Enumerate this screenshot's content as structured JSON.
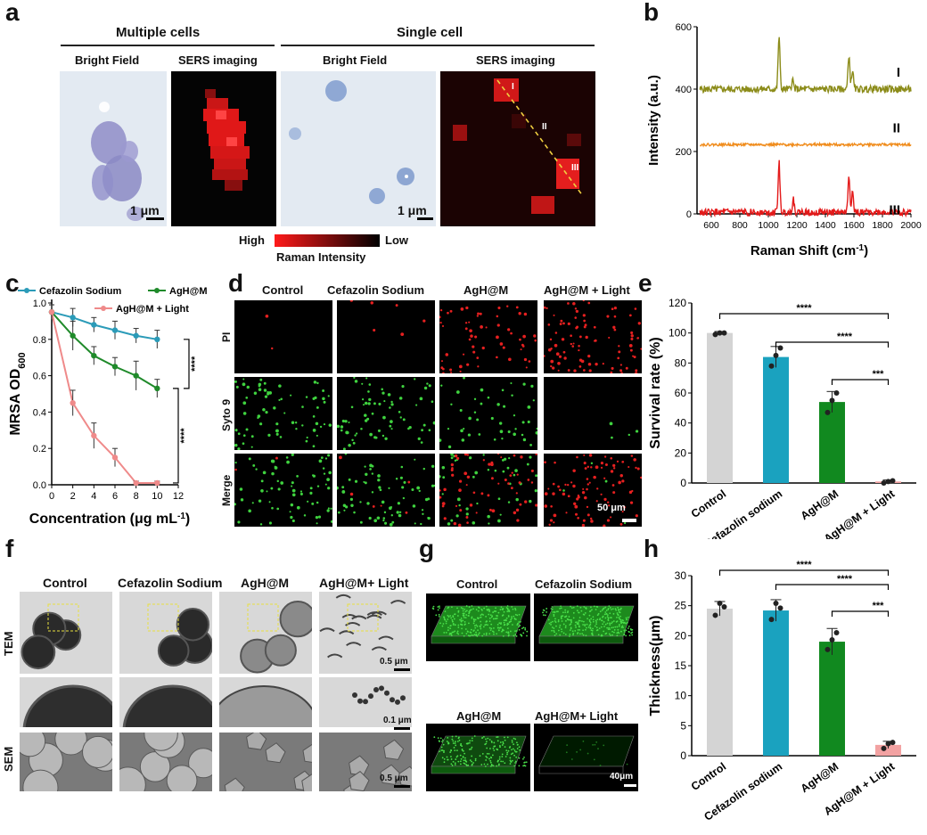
{
  "panels": {
    "a": "a",
    "b": "b",
    "c": "c",
    "d": "d",
    "e": "e",
    "f": "f",
    "g": "g",
    "h": "h"
  },
  "panel_a": {
    "group_multi": "Multiple cells",
    "group_single": "Single cell",
    "bright_field": "Bright Field",
    "sers_imaging": "SERS imaging",
    "scale": "1 μm",
    "colorbar_high": "High",
    "colorbar_low": "Low",
    "colorbar_label": "Raman Intensity",
    "spot_labels": [
      "I",
      "II",
      "III"
    ]
  },
  "panel_d": {
    "columns": [
      "Control",
      "Cefazolin Sodium",
      "AgH@M",
      "AgH@M + Light"
    ],
    "rows": [
      "PI",
      "Syto 9",
      "Merge"
    ],
    "scale": "50 μm"
  },
  "panel_f": {
    "columns": [
      "Control",
      "Cefazolin Sodium",
      "AgH@M",
      "AgH@M+ Light"
    ],
    "rows": [
      "TEM",
      "SEM"
    ],
    "scale_1": "0.5 μm",
    "scale_2": "0.1 μm",
    "scale_3": "0.5 μm"
  },
  "panel_g": {
    "labels": [
      "Control",
      "Cefazolin Sodium",
      "AgH@M",
      "AgH@M+ Light"
    ],
    "scale": "40μm"
  },
  "chart_data": [
    {
      "panel": "b",
      "type": "line",
      "xlabel": "Raman Shift (cm-1)",
      "ylabel": "Intensity (a.u.)",
      "xlim": [
        500,
        2000
      ],
      "ylim": [
        0,
        600
      ],
      "xticks": [
        600,
        800,
        1000,
        1200,
        1400,
        1600,
        1800,
        2000
      ],
      "yticks": [
        0,
        200,
        400,
        600
      ],
      "series": [
        {
          "name": "I",
          "color": "#8c8c1a",
          "baseline": 400,
          "peaks": [
            [
              1075,
              170
            ],
            [
              1170,
              30
            ],
            [
              1565,
              110
            ],
            [
              1590,
              60
            ]
          ]
        },
        {
          "name": "II",
          "color": "#f08c1c",
          "baseline": 222,
          "peaks": []
        },
        {
          "name": "III",
          "color": "#e41a1a",
          "baseline": 5,
          "peaks": [
            [
              1075,
              160
            ],
            [
              1175,
              45
            ],
            [
              1565,
              120
            ],
            [
              1590,
              65
            ]
          ]
        }
      ]
    },
    {
      "panel": "c",
      "type": "line",
      "xlabel": "Concentration (μg mL-1)",
      "ylabel": "MRSA OD600",
      "xlim": [
        0,
        12
      ],
      "ylim": [
        0,
        1.0
      ],
      "xticks": [
        0,
        2,
        4,
        6,
        8,
        10,
        12
      ],
      "yticks": [
        0.0,
        0.2,
        0.4,
        0.6,
        0.8,
        1.0
      ],
      "x": [
        0,
        2,
        4,
        6,
        8,
        10
      ],
      "series": [
        {
          "name": "Cefazolin Sodium",
          "color": "#2b9bb8",
          "values": [
            0.95,
            0.92,
            0.88,
            0.85,
            0.82,
            0.8
          ],
          "err": [
            0.04,
            0.05,
            0.04,
            0.05,
            0.04,
            0.05
          ]
        },
        {
          "name": "AgH@M",
          "color": "#1f8a2a",
          "values": [
            0.95,
            0.82,
            0.71,
            0.65,
            0.6,
            0.53
          ],
          "err": [
            0.04,
            0.08,
            0.05,
            0.05,
            0.08,
            0.05
          ]
        },
        {
          "name": "AgH@M + Light",
          "color": "#ef8a8a",
          "values": [
            0.95,
            0.45,
            0.27,
            0.15,
            0.01,
            0.01
          ],
          "err": [
            0.04,
            0.07,
            0.07,
            0.05,
            0.01,
            0.01
          ]
        }
      ],
      "significance": [
        "****",
        "****"
      ]
    },
    {
      "panel": "e",
      "type": "bar",
      "ylabel": "Survival rate (%)",
      "ylim": [
        0,
        120
      ],
      "yticks": [
        0,
        20,
        40,
        60,
        80,
        100,
        120
      ],
      "categories": [
        "Control",
        "Cefazolin sodium",
        "AgH@M",
        "AgH@M + Light"
      ],
      "values": [
        100,
        84,
        54,
        1
      ],
      "err": [
        1,
        7,
        7,
        1
      ],
      "colors": [
        "#d4d4d4",
        "#1aa2bf",
        "#11891f",
        "#f2a2a2"
      ],
      "points": [
        [
          99,
          100,
          100
        ],
        [
          78,
          85,
          90
        ],
        [
          47,
          55,
          60
        ],
        [
          0,
          1,
          1.5
        ]
      ],
      "significance": [
        "****",
        "****",
        "***"
      ]
    },
    {
      "panel": "h",
      "type": "bar",
      "ylabel": "Thickness(μm)",
      "ylim": [
        0,
        30
      ],
      "yticks": [
        0,
        5,
        10,
        15,
        20,
        25,
        30
      ],
      "categories": [
        "Control",
        "Cefazolin sodium",
        "AgH@M",
        "AgH@M + Light"
      ],
      "values": [
        24.5,
        24.2,
        19.0,
        1.8
      ],
      "err": [
        1.2,
        1.8,
        2.2,
        0.6
      ],
      "colors": [
        "#d4d4d4",
        "#1aa2bf",
        "#11891f",
        "#f2a2a2"
      ],
      "points": [
        [
          23.4,
          25.4,
          24.8
        ],
        [
          22.7,
          25.4,
          24.6
        ],
        [
          17.7,
          19.3,
          20.5
        ],
        [
          1.2,
          2.0,
          2.2
        ]
      ],
      "significance": [
        "****",
        "****",
        "***"
      ]
    }
  ]
}
